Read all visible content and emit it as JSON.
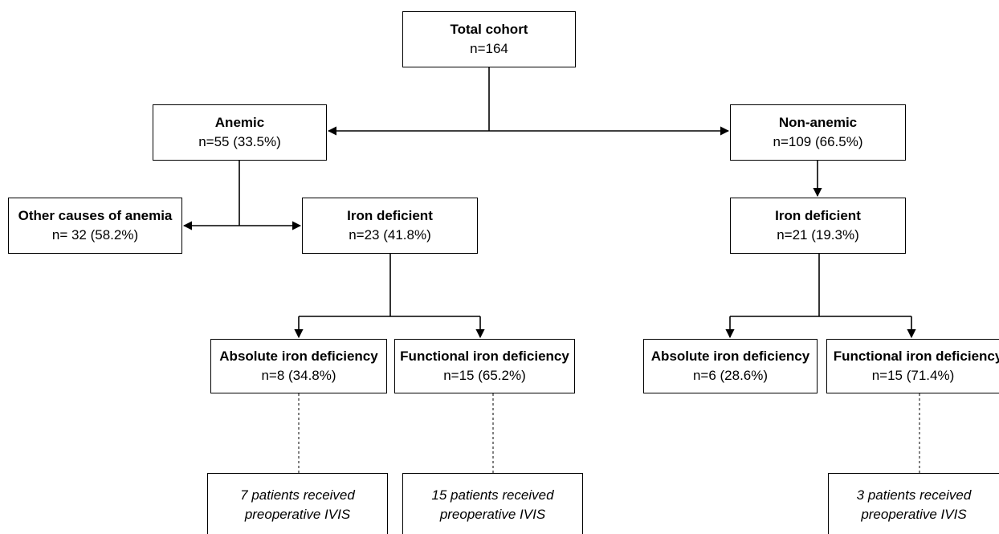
{
  "nodes": {
    "total": {
      "title": "Total cohort",
      "count": "n=164"
    },
    "anemic": {
      "title": "Anemic",
      "count": "n=55 (33.5%)"
    },
    "non_anemic": {
      "title": "Non-anemic",
      "count": "n=109 (66.5%)"
    },
    "other_causes": {
      "title": "Other causes of anemia",
      "count": "n= 32 (58.2%)"
    },
    "anemic_iron_deficient": {
      "title": "Iron deficient",
      "count": "n=23 (41.8%)"
    },
    "non_anemic_iron_deficient": {
      "title": "Iron deficient",
      "count": "n=21 (19.3%)"
    },
    "anemic_absolute": {
      "title": "Absolute iron deficiency",
      "count": "n=8 (34.8%)"
    },
    "anemic_functional": {
      "title": "Functional iron deficiency",
      "count": "n=15 (65.2%)"
    },
    "non_anemic_absolute": {
      "title": "Absolute iron deficiency",
      "count": "n=6 (28.6%)"
    },
    "non_anemic_functional": {
      "title": "Functional iron deficiency",
      "count": "n=15 (71.4%)"
    }
  },
  "notes": {
    "anemic_absolute_ivis": {
      "line1": "7 patients received",
      "line2": "preoperative IVIS"
    },
    "anemic_functional_ivis": {
      "line1": "15 patients received",
      "line2": "preoperative IVIS"
    },
    "non_anemic_functional_ivis": {
      "line1": "3 patients received",
      "line2": "preoperative IVIS"
    }
  }
}
